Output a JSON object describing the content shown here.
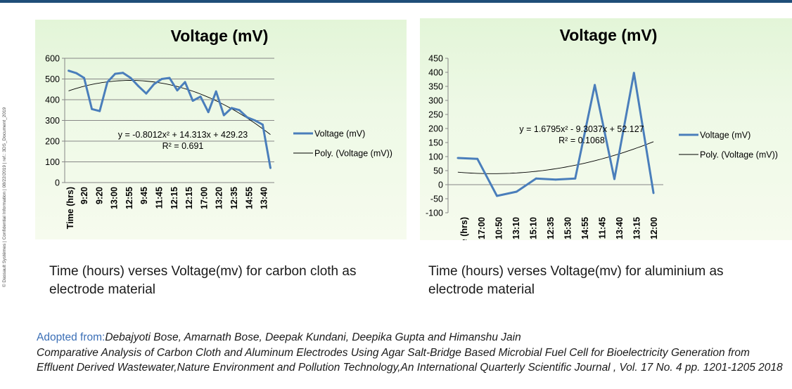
{
  "side_note": "© Dassault Systèmes | Confidential Information | 08/22/2019 | ref.: 3DS_Document_2019",
  "captions": {
    "left": "Time (hours) verses Voltage(mv) for carbon cloth as electrode material",
    "right": "Time (hours) verses Voltage(mv) for aluminium as electrode material"
  },
  "citation": {
    "lead": "Adopted from:",
    "authors": "Debajyoti Bose, Amarnath Bose, Deepak Kundani, Deepika Gupta and Himanshu Jain",
    "details": "Comparative Analysis of Carbon Cloth and Aluminum Electrodes Using Agar Salt-Bridge Based Microbial Fuel Cell for Bioelectricity Generation from Effluent Derived Wastewater,Nature Environment and Pollution Technology,An International Quarterly Scientific Journal  , Vol. 17 No. 4 pp. 1201-1205 2018"
  },
  "colors": {
    "series": "#4a7ebb",
    "trend": "#000000",
    "gridline": "#868686"
  },
  "chart_data": [
    {
      "type": "line",
      "title": "Voltage (mV)",
      "xlabel": "Time (hrs)",
      "x_tick_labels": [
        "9:20",
        "9:20",
        "13:00",
        "12:55",
        "9:45",
        "11:45",
        "12:15",
        "12:15",
        "17:00",
        "13:20",
        "12:35",
        "14:55",
        "13:40"
      ],
      "ylim": [
        0,
        600
      ],
      "y_ticks": [
        0,
        100,
        200,
        300,
        400,
        500,
        600
      ],
      "grid": "horizontal",
      "legend": "right",
      "series": [
        {
          "name": "Voltage (mV)",
          "values": [
            540,
            528,
            505,
            355,
            345,
            485,
            525,
            530,
            505,
            465,
            430,
            475,
            500,
            505,
            445,
            485,
            395,
            415,
            340,
            440,
            325,
            360,
            350,
            315,
            300,
            280,
            70
          ]
        }
      ],
      "trendline": {
        "name": "Poly. (Voltage (mV))",
        "equation": "y = -0.8012x² + 14.313x + 429.23",
        "r_squared": "R² = 0.691",
        "coefficients": [
          -0.8012,
          14.313,
          429.23
        ]
      }
    },
    {
      "type": "line",
      "title": "Voltage (mV)",
      "xlabel": "Time (hrs)",
      "x_tick_labels": [
        "17:00",
        "10:50",
        "13:10",
        "15:10",
        "12:35",
        "15:30",
        "14:55",
        "11:45",
        "13:40",
        "13:15",
        "12:00"
      ],
      "ylim": [
        -100,
        450
      ],
      "y_ticks": [
        -100,
        -50,
        0,
        50,
        100,
        150,
        200,
        250,
        300,
        350,
        400,
        450
      ],
      "grid": "none",
      "legend": "right",
      "series": [
        {
          "name": "Voltage (mV)",
          "values": [
            95,
            92,
            -40,
            -25,
            22,
            18,
            22,
            355,
            20,
            398,
            -30
          ]
        }
      ],
      "trendline": {
        "name": "Poly. (Voltage (mV))",
        "equation": "y = 1.6795x² - 9.3037x + 52.127",
        "r_squared": "R² = 0.1068",
        "coefficients": [
          1.6795,
          -9.3037,
          52.127
        ]
      }
    }
  ]
}
